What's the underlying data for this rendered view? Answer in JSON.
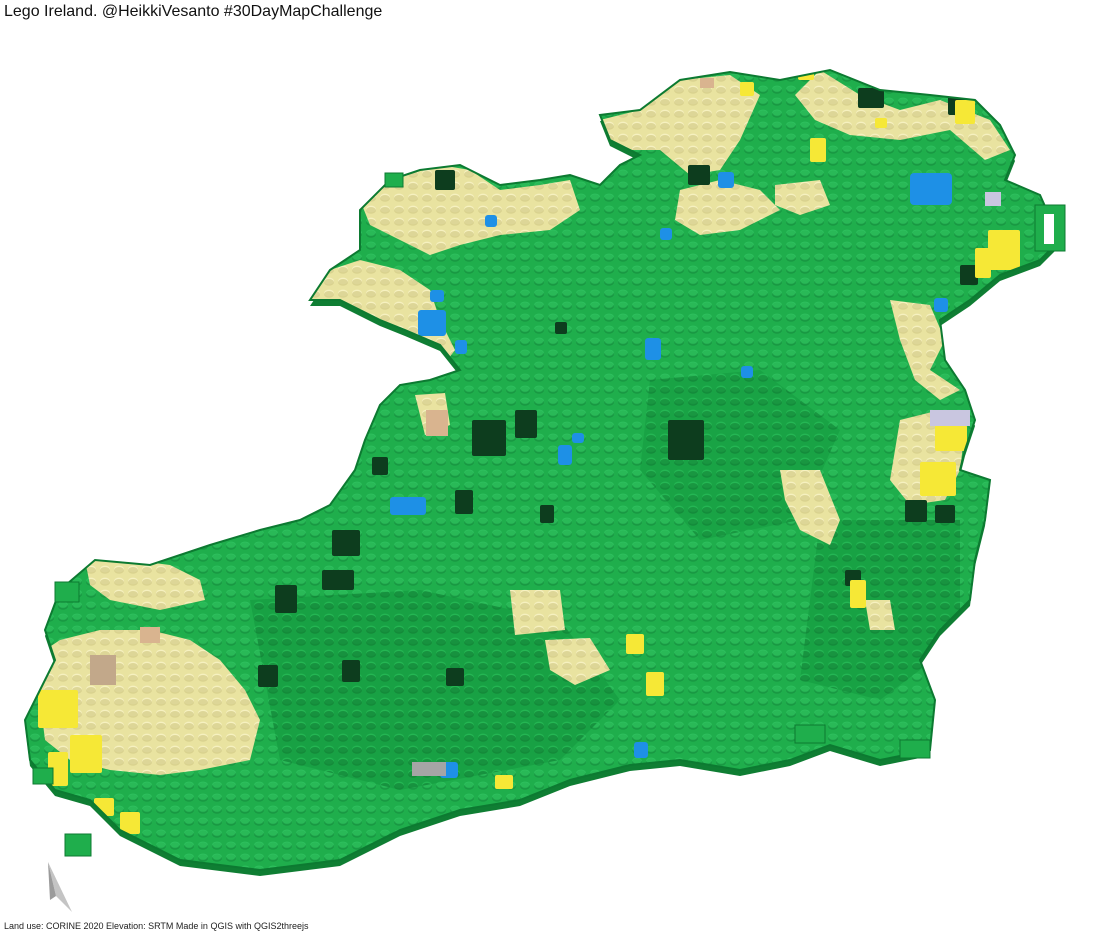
{
  "title": "Lego Ireland. @HeikkiVesanto #30DayMapChallenge",
  "credits": "Land use: CORINE 2020 Elevation: SRTM Made in QGIS with QGIS2threejs",
  "palette": {
    "green": "#1fae4c",
    "green_light": "#2cc05a",
    "green_dark": "#0b6b2e",
    "forest": "#0d3d1e",
    "cream": "#efe9a6",
    "cream_shade": "#d9d18c",
    "yellow": "#f6e836",
    "blue": "#1e90e6",
    "tan": "#d9b48f",
    "brown": "#b56d3f",
    "grey": "#a5a5a5",
    "lavender": "#c9c6e0"
  },
  "icons": {
    "north_arrow": "north-arrow-icon"
  }
}
